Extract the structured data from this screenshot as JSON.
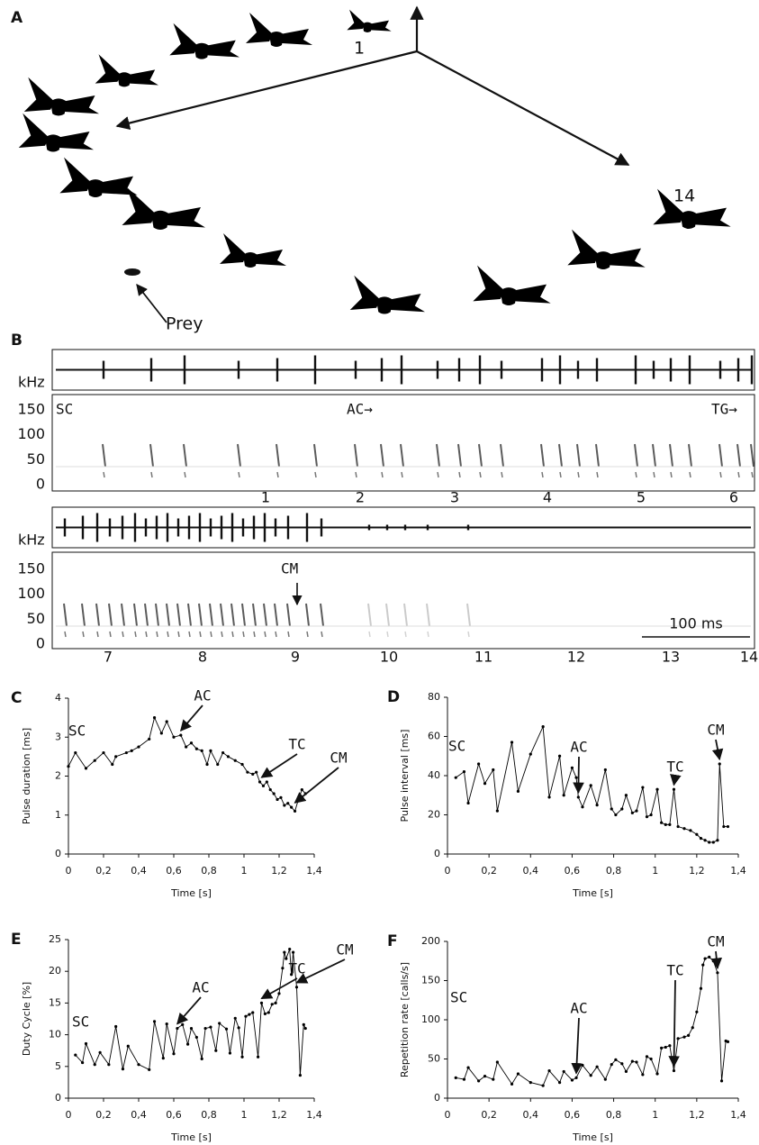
{
  "panel_a": {
    "label": "A",
    "annotations": [
      "1",
      "14",
      "Prey"
    ]
  },
  "panel_b": {
    "label": "B",
    "bands": [
      {
        "unit": "kHz",
        "freq_ticks": [
          150,
          100,
          50,
          0
        ],
        "annotations": [
          "SC",
          "AC→",
          "TG→"
        ],
        "numbers": [
          1,
          2,
          3,
          4,
          5,
          6
        ]
      },
      {
        "unit": "kHz",
        "freq_ticks": [
          150,
          100,
          50,
          0
        ],
        "annotations": [
          "CM"
        ],
        "numbers": [
          7,
          8,
          9,
          10,
          11,
          12,
          13,
          14
        ],
        "scale_bar": "100 ms"
      }
    ]
  },
  "chart_data": [
    {
      "type": "line",
      "label": "C",
      "ylabel": "Pulse duration [ms]",
      "xlabel": "Time [s]",
      "color": "#000000",
      "xlim": [
        0,
        1.4
      ],
      "xticks": [
        0,
        {
          "value": 0.2,
          "label": "0,2"
        },
        {
          "value": 0.4,
          "label": "0,4"
        },
        {
          "value": 0.6,
          "label": "0,6"
        },
        {
          "value": 0.8,
          "label": "0,8"
        },
        1,
        {
          "value": 1.2,
          "label": "1,2"
        },
        {
          "value": 1.4,
          "label": "1,4"
        }
      ],
      "ylim": [
        0,
        4
      ],
      "yticks": [
        0,
        1,
        2,
        3,
        4
      ],
      "annotations": [
        "SC",
        "AC",
        "TC",
        "CM"
      ],
      "x": [
        0,
        0.04,
        0.1,
        0.15,
        0.2,
        0.25,
        0.27,
        0.33,
        0.36,
        0.4,
        0.46,
        0.49,
        0.53,
        0.56,
        0.6,
        0.64,
        0.67,
        0.7,
        0.73,
        0.76,
        0.79,
        0.81,
        0.85,
        0.88,
        0.91,
        0.95,
        0.99,
        1.02,
        1.05,
        1.07,
        1.09,
        1.11,
        1.13,
        1.15,
        1.17,
        1.19,
        1.21,
        1.23,
        1.25,
        1.27,
        1.29,
        1.31,
        1.33,
        1.35
      ],
      "values": [
        2.25,
        2.6,
        2.2,
        2.4,
        2.6,
        2.3,
        2.5,
        2.6,
        2.65,
        2.75,
        2.95,
        3.5,
        3.1,
        3.4,
        3.0,
        3.05,
        2.75,
        2.85,
        2.7,
        2.65,
        2.3,
        2.65,
        2.3,
        2.6,
        2.5,
        2.4,
        2.3,
        2.1,
        2.05,
        2.1,
        1.85,
        1.75,
        1.85,
        1.65,
        1.55,
        1.4,
        1.45,
        1.25,
        1.3,
        1.2,
        1.1,
        1.4,
        1.65,
        1.55
      ]
    },
    {
      "type": "line",
      "label": "D",
      "ylabel": "Pulse interval [ms]",
      "xlabel": "Time [s]",
      "color": "#000000",
      "xlim": [
        0,
        1.4
      ],
      "xticks": [
        0,
        {
          "value": 0.2,
          "label": "0,2"
        },
        {
          "value": 0.4,
          "label": "0,4"
        },
        {
          "value": 0.6,
          "label": "0,6"
        },
        {
          "value": 0.8,
          "label": "0,8"
        },
        1,
        {
          "value": 1.2,
          "label": "1,2"
        },
        {
          "value": 1.4,
          "label": "1,4"
        }
      ],
      "ylim": [
        0,
        80
      ],
      "yticks": [
        0,
        20,
        40,
        60,
        80
      ],
      "annotations": [
        "SC",
        "AC",
        "TC",
        "CM"
      ],
      "x": [
        0.04,
        0.08,
        0.1,
        0.15,
        0.18,
        0.22,
        0.24,
        0.31,
        0.34,
        0.4,
        0.46,
        0.49,
        0.54,
        0.56,
        0.6,
        0.62,
        0.63,
        0.65,
        0.69,
        0.72,
        0.76,
        0.79,
        0.81,
        0.84,
        0.86,
        0.89,
        0.91,
        0.94,
        0.96,
        0.98,
        1.01,
        1.03,
        1.05,
        1.07,
        1.09,
        1.11,
        1.14,
        1.17,
        1.2,
        1.22,
        1.24,
        1.26,
        1.28,
        1.3,
        1.31,
        1.33,
        1.35
      ],
      "values": [
        39,
        42,
        26,
        46,
        36,
        43,
        22,
        57,
        32,
        51,
        65,
        29,
        50,
        30,
        44,
        39,
        29,
        24,
        35,
        25,
        43,
        23,
        20,
        23,
        30,
        21,
        22,
        34,
        19,
        20,
        33,
        16,
        15,
        15,
        33,
        14,
        13,
        12,
        10,
        8,
        7,
        6,
        6,
        7,
        46,
        14,
        14
      ]
    },
    {
      "type": "line",
      "label": "E",
      "ylabel": "Duty Cycle [%]",
      "xlabel": "Time [s]",
      "color": "#000000",
      "xlim": [
        0,
        1.4
      ],
      "xticks": [
        0,
        {
          "value": 0.2,
          "label": "0,2"
        },
        {
          "value": 0.4,
          "label": "0,4"
        },
        {
          "value": 0.6,
          "label": "0,6"
        },
        {
          "value": 0.8,
          "label": "0,8"
        },
        1,
        {
          "value": 1.2,
          "label": "1,2"
        },
        {
          "value": 1.4,
          "label": "1,4"
        }
      ],
      "ylim": [
        0,
        25
      ],
      "yticks": [
        0,
        5,
        10,
        15,
        20,
        25
      ],
      "annotations": [
        "SC",
        "AC",
        "TC",
        "CM"
      ],
      "x": [
        0.04,
        0.08,
        0.1,
        0.15,
        0.18,
        0.23,
        0.27,
        0.31,
        0.34,
        0.4,
        0.46,
        0.49,
        0.54,
        0.56,
        0.6,
        0.62,
        0.65,
        0.68,
        0.7,
        0.73,
        0.76,
        0.78,
        0.81,
        0.84,
        0.86,
        0.9,
        0.92,
        0.95,
        0.97,
        0.99,
        1.01,
        1.03,
        1.05,
        1.08,
        1.1,
        1.12,
        1.14,
        1.16,
        1.18,
        1.2,
        1.22,
        1.23,
        1.24,
        1.26,
        1.27,
        1.28,
        1.3,
        1.32,
        1.34,
        1.35
      ],
      "values": [
        6.8,
        5.6,
        8.6,
        5.3,
        7.2,
        5.3,
        11.3,
        4.6,
        8.2,
        5.3,
        4.5,
        12.1,
        6.3,
        11.7,
        7.0,
        11.0,
        11.6,
        8.5,
        11.0,
        9.6,
        6.2,
        11.0,
        11.2,
        7.5,
        11.8,
        10.9,
        7.1,
        12.6,
        11.1,
        6.5,
        12.9,
        13.2,
        13.5,
        6.5,
        15.0,
        13.3,
        13.5,
        14.8,
        15.0,
        16.5,
        20.5,
        23.0,
        22.0,
        23.5,
        19.5,
        23.0,
        17.5,
        3.6,
        11.6,
        11.0
      ]
    },
    {
      "type": "line",
      "label": "F",
      "ylabel": "Repetition rate [calls/s]",
      "xlabel": "Time [s]",
      "color": "#000000",
      "xlim": [
        0,
        1.4
      ],
      "xticks": [
        0,
        {
          "value": 0.2,
          "label": "0,2"
        },
        {
          "value": 0.4,
          "label": "0,4"
        },
        {
          "value": 0.6,
          "label": "0,6"
        },
        {
          "value": 0.8,
          "label": "0,8"
        },
        1,
        {
          "value": 1.2,
          "label": "1,2"
        },
        {
          "value": 1.4,
          "label": "1,4"
        }
      ],
      "ylim": [
        0,
        200
      ],
      "yticks": [
        0,
        50,
        100,
        150,
        200
      ],
      "annotations": [
        "SC",
        "AC",
        "TC",
        "CM"
      ],
      "x": [
        0.04,
        0.08,
        0.1,
        0.15,
        0.18,
        0.22,
        0.24,
        0.31,
        0.34,
        0.4,
        0.46,
        0.49,
        0.54,
        0.56,
        0.6,
        0.62,
        0.65,
        0.69,
        0.72,
        0.76,
        0.79,
        0.81,
        0.84,
        0.86,
        0.89,
        0.91,
        0.94,
        0.96,
        0.98,
        1.01,
        1.03,
        1.05,
        1.07,
        1.09,
        1.11,
        1.14,
        1.16,
        1.18,
        1.2,
        1.22,
        1.23,
        1.24,
        1.26,
        1.28,
        1.3,
        1.32,
        1.34,
        1.35
      ],
      "values": [
        26,
        24,
        39,
        22,
        28,
        24,
        46,
        18,
        31,
        20,
        16,
        35,
        20,
        34,
        23,
        26,
        42,
        29,
        40,
        24,
        43,
        49,
        44,
        34,
        47,
        46,
        30,
        53,
        50,
        31,
        64,
        65,
        67,
        35,
        76,
        78,
        80,
        90,
        110,
        140,
        170,
        178,
        180,
        175,
        160,
        22,
        73,
        72
      ]
    }
  ]
}
